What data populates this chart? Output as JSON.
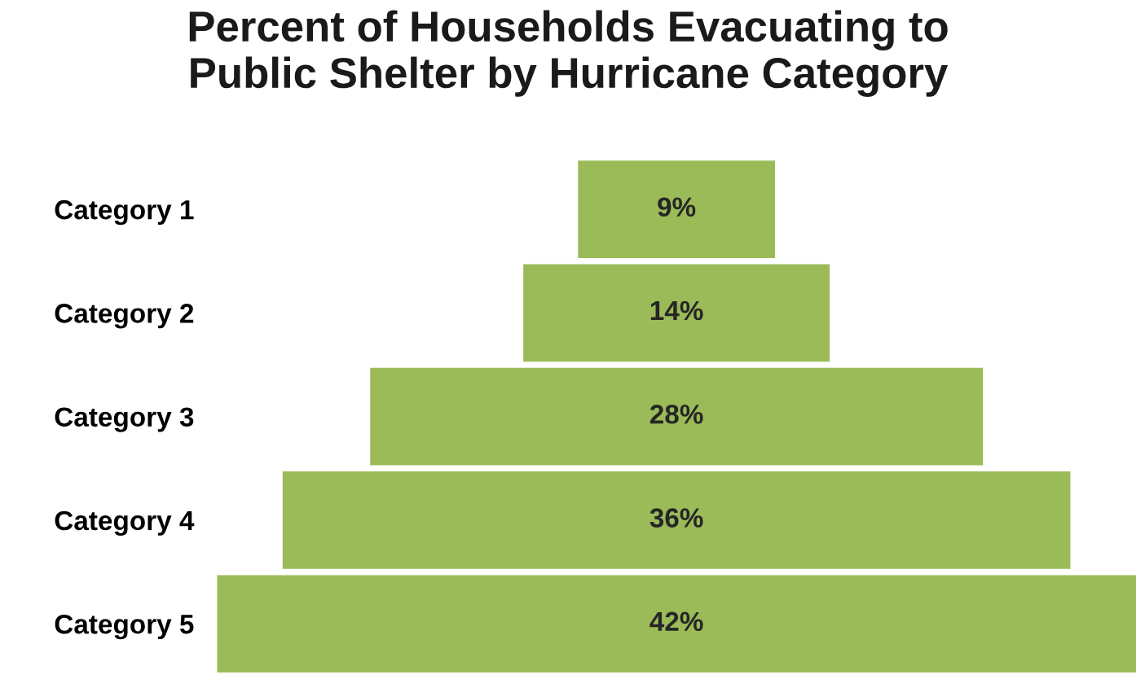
{
  "chart_data": {
    "type": "other",
    "title": "Percent of Households Evacuating to\nPublic Shelter by Hurricane Category",
    "categories": [
      "Category 1",
      "Category 2",
      "Category 3",
      "Category 4",
      "Category 5"
    ],
    "values": [
      9,
      14,
      28,
      36,
      42
    ],
    "value_labels": [
      "9%",
      "14%",
      "28%",
      "36%",
      "42%"
    ],
    "color": "#9bbb59"
  }
}
